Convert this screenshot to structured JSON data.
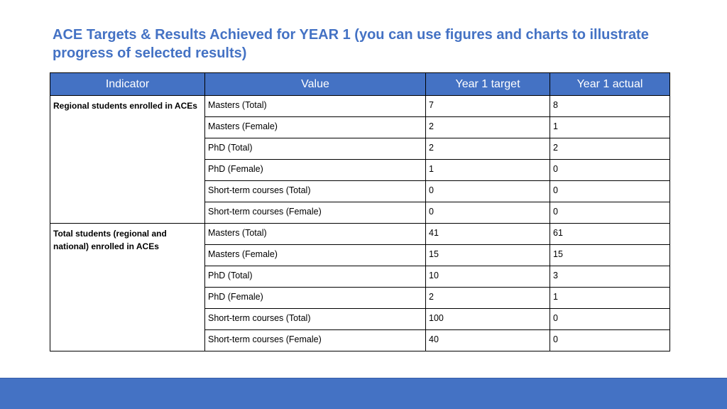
{
  "title": "ACE Targets & Results Achieved for YEAR 1 (you can use figures and charts to illustrate progress of selected results)",
  "table": {
    "headers": {
      "indicator": "Indicator",
      "value": "Value",
      "target": "Year 1 target",
      "actual": "Year 1 actual"
    },
    "groups": [
      {
        "indicator": "Regional students enrolled in ACEs",
        "rows": [
          {
            "value": "Masters (Total)",
            "target": "7",
            "actual": "8"
          },
          {
            "value": "Masters (Female)",
            "target": "2",
            "actual": "1"
          },
          {
            "value": "PhD (Total)",
            "target": "2",
            "actual": "2"
          },
          {
            "value": "PhD (Female)",
            "target": "1",
            "actual": "0"
          },
          {
            "value": "Short-term courses (Total)",
            "target": "0",
            "actual": "0"
          },
          {
            "value": "Short-term courses (Female)",
            "target": "0",
            "actual": "0"
          }
        ]
      },
      {
        "indicator": "Total students (regional and national) enrolled in ACEs",
        "rows": [
          {
            "value": "Masters (Total)",
            "target": "41",
            "actual": "61"
          },
          {
            "value": "Masters (Female)",
            "target": "15",
            "actual": "15"
          },
          {
            "value": "PhD (Total)",
            "target": "10",
            "actual": "3"
          },
          {
            "value": "PhD (Female)",
            "target": "2",
            "actual": "1"
          },
          {
            "value": "Short-term courses (Total)",
            "target": "100",
            "actual": "0"
          },
          {
            "value": "Short-term courses (Female)",
            "target": "40",
            "actual": "0"
          }
        ]
      }
    ]
  }
}
